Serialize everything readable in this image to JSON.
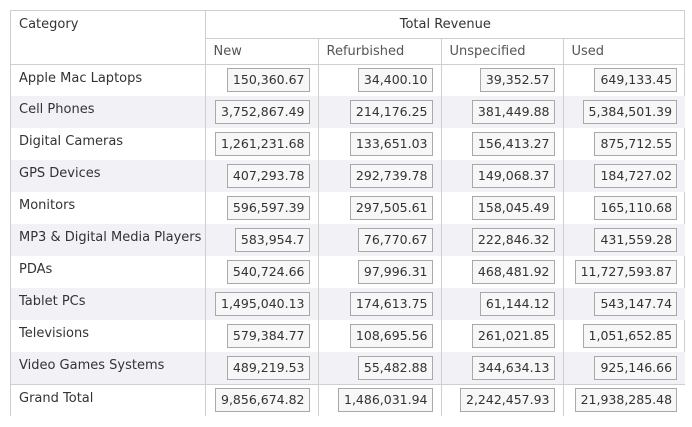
{
  "header": {
    "category_label": "Category",
    "group_label": "Total Revenue",
    "columns": [
      "New",
      "Refurbished",
      "Unspecified",
      "Used"
    ]
  },
  "rows": [
    {
      "category": "Apple Mac Laptops",
      "values": [
        "150,360.67",
        "34,400.10",
        "39,352.57",
        "649,133.45"
      ]
    },
    {
      "category": "Cell Phones",
      "values": [
        "3,752,867.49",
        "214,176.25",
        "381,449.88",
        "5,384,501.39"
      ]
    },
    {
      "category": "Digital Cameras",
      "values": [
        "1,261,231.68",
        "133,651.03",
        "156,413.27",
        "875,712.55"
      ]
    },
    {
      "category": "GPS Devices",
      "values": [
        "407,293.78",
        "292,739.78",
        "149,068.37",
        "184,727.02"
      ]
    },
    {
      "category": "Monitors",
      "values": [
        "596,597.39",
        "297,505.61",
        "158,045.49",
        "165,110.68"
      ]
    },
    {
      "category": "MP3 & Digital Media Players",
      "values": [
        "583,954.7",
        "76,770.67",
        "222,846.32",
        "431,559.28"
      ]
    },
    {
      "category": "PDAs",
      "values": [
        "540,724.66",
        "97,996.31",
        "468,481.92",
        "11,727,593.87"
      ]
    },
    {
      "category": "Tablet PCs",
      "values": [
        "1,495,040.13",
        "174,613.75",
        "61,144.12",
        "543,147.74"
      ]
    },
    {
      "category": "Televisions",
      "values": [
        "579,384.77",
        "108,695.56",
        "261,021.85",
        "1,051,652.85"
      ]
    },
    {
      "category": "Video Games Systems",
      "values": [
        "489,219.53",
        "55,482.88",
        "344,634.13",
        "925,146.66"
      ]
    }
  ],
  "total": {
    "category": "Grand Total",
    "values": [
      "9,856,674.82",
      "1,486,031.94",
      "2,242,457.93",
      "21,938,285.48"
    ]
  }
}
